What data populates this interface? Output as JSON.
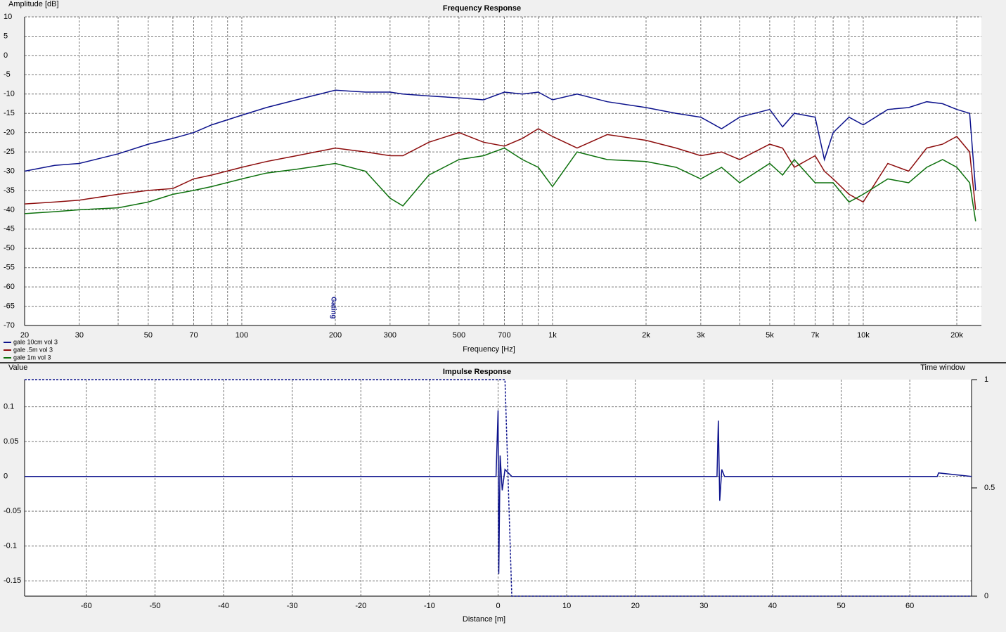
{
  "chart_data": [
    {
      "type": "line",
      "title": "Frequency Response",
      "ylabel": "Amplitude [dB]",
      "xlabel": "Frequency [Hz]",
      "xscale": "log",
      "grid": true,
      "legend": "bottom-left",
      "xlim": [
        20,
        24000
      ],
      "xticks": [
        20,
        30,
        50,
        70,
        100,
        200,
        300,
        500,
        700,
        {
          "value": 1000,
          "label": "1k"
        },
        {
          "value": 2000,
          "label": "2k"
        },
        {
          "value": 3000,
          "label": "3k"
        },
        {
          "value": 5000,
          "label": "5k"
        },
        {
          "value": 7000,
          "label": "7k"
        },
        {
          "value": 10000,
          "label": "10k"
        },
        {
          "value": 20000,
          "label": "20k"
        }
      ],
      "xminorticks": [
        40,
        60,
        80,
        90,
        400,
        600,
        800,
        900,
        4000,
        6000,
        8000,
        9000
      ],
      "ylim": [
        -70,
        10
      ],
      "yticks": [
        10,
        5,
        0,
        -5,
        -10,
        -15,
        -20,
        -25,
        -30,
        -35,
        -40,
        -45,
        -50,
        -55,
        -60,
        -65,
        -70
      ],
      "annotation": {
        "text": "Gating",
        "x": 200
      },
      "x": [
        20,
        25,
        30,
        40,
        50,
        60,
        70,
        80,
        100,
        120,
        150,
        200,
        250,
        300,
        330,
        400,
        500,
        600,
        700,
        800,
        900,
        1000,
        1200,
        1500,
        2000,
        2500,
        3000,
        3500,
        4000,
        5000,
        5500,
        6000,
        7000,
        7500,
        8000,
        9000,
        10000,
        12000,
        14000,
        16000,
        18000,
        20000,
        22000,
        23000
      ],
      "series": [
        {
          "name": "gale 10cm vol 3",
          "color": "#0c128c",
          "values": [
            -30,
            -28.5,
            -28,
            -25.5,
            -23,
            -21.5,
            -20,
            -18,
            -15.5,
            -13.5,
            -11.5,
            -9,
            -9.5,
            -9.5,
            -10,
            -10.5,
            -11,
            -11.5,
            -9.5,
            -10,
            -9.5,
            -11.5,
            -10,
            -12,
            -13.5,
            -15,
            -16,
            -19,
            -16,
            -14,
            -18.5,
            -15,
            -16,
            -27,
            -20,
            -16,
            -18,
            -14,
            -13.5,
            -12,
            -12.5,
            -14,
            -15,
            -35
          ]
        },
        {
          "name": "gale .5m vol 3",
          "color": "#8c0c0c",
          "values": [
            -38.5,
            -38,
            -37.5,
            -36,
            -35,
            -34.5,
            -32,
            -31,
            -29,
            -27.5,
            -26,
            -24,
            -25,
            -26,
            -26,
            -22.5,
            -20,
            -22.5,
            -23.5,
            -21.5,
            -19,
            -21,
            -24,
            -20.5,
            -22,
            -24,
            -26,
            -25,
            -27,
            -23,
            -24,
            -29,
            -26,
            -30,
            -32,
            -36,
            -38,
            -28,
            -30,
            -24,
            -23,
            -21,
            -25,
            -40
          ]
        },
        {
          "name": "gale 1m vol 3",
          "color": "#0c700c",
          "values": [
            -41,
            -40.5,
            -40,
            -39.5,
            -38,
            -36,
            -35,
            -34,
            -32,
            -30.5,
            -29.5,
            -28,
            -30,
            -37,
            -39,
            -31,
            -27,
            -26,
            -24,
            -27,
            -29,
            -34,
            -25,
            -27,
            -27.5,
            -29,
            -32,
            -29,
            -33,
            -28,
            -31,
            -27,
            -33,
            -33,
            -33,
            -38,
            -36,
            -32,
            -33,
            -29,
            -27,
            -29,
            -33,
            -43
          ]
        }
      ]
    },
    {
      "type": "line",
      "title": "Impulse Response",
      "ylabel": "Value",
      "xlabel": "Distance [m]",
      "y2label": "Time window",
      "xscale": "linear",
      "grid": true,
      "xlim": [
        -69,
        69
      ],
      "xticks": [
        -60,
        -50,
        -40,
        -30,
        -20,
        -10,
        0,
        10,
        20,
        30,
        40,
        50,
        60
      ],
      "ylim": [
        -0.172,
        0.139
      ],
      "yticks": [
        0.1,
        0.05,
        0,
        -0.05,
        -0.1,
        -0.15
      ],
      "y2lim": [
        0,
        1
      ],
      "y2ticks": [
        1,
        0.5,
        0
      ],
      "series": [
        {
          "color": "#0c128c",
          "x": [
            -69,
            -2,
            -0.3,
            0,
            0.1,
            0.3,
            0.6,
            1,
            2,
            10,
            31.9,
            32.1,
            32.3,
            32.6,
            33,
            64,
            64.2,
            69
          ],
          "values": [
            0,
            0,
            0,
            0.095,
            -0.14,
            0.03,
            -0.02,
            0.01,
            0,
            0,
            0,
            0.08,
            -0.035,
            0.01,
            0,
            0,
            0.005,
            0
          ]
        },
        {
          "color": "#0c128c",
          "axis": "y2",
          "dashed": true,
          "x": [
            -69,
            1,
            2,
            69
          ],
          "values": [
            1,
            1,
            0,
            0
          ]
        }
      ]
    }
  ]
}
